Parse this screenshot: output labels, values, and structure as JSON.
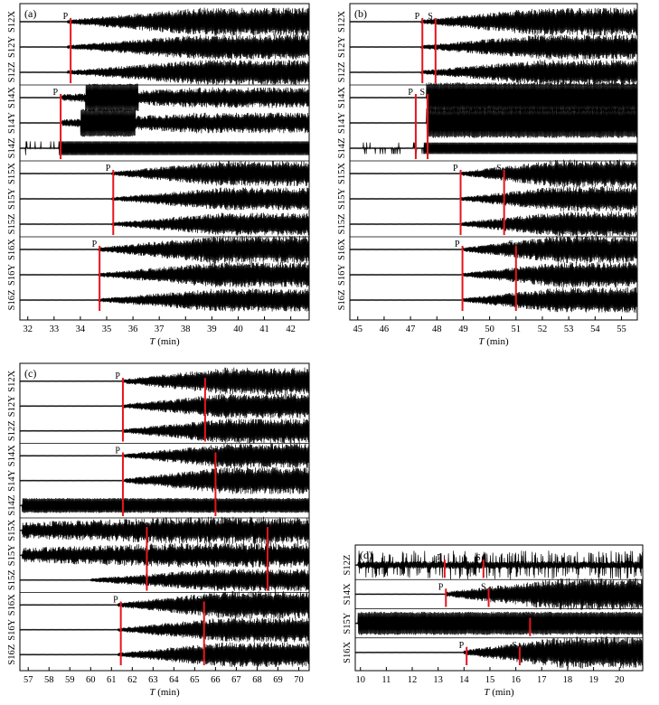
{
  "chart_data": [
    {
      "type": "line",
      "panel_label": "(a)",
      "xlabel_var": "T",
      "xlabel_unit": " (min)",
      "xlim": [
        31.7,
        42.7
      ],
      "x_ticks": [
        32,
        33,
        34,
        35,
        36,
        37,
        38,
        39,
        40,
        41,
        42
      ],
      "series": [
        {
          "name": "S12X",
          "group": "S12",
          "onset": 33.5,
          "peak": 0.55,
          "style": "grow"
        },
        {
          "name": "S12Y",
          "group": "S12",
          "onset": 33.5,
          "peak": 0.5,
          "style": "grow"
        },
        {
          "name": "S12Z",
          "group": "S12",
          "onset": 33.5,
          "peak": 0.5,
          "style": "grow"
        },
        {
          "name": "S14X",
          "group": "S14",
          "onset": 33.3,
          "peak": 0.55,
          "style": "burst",
          "burst_range": [
            34.2,
            36.2
          ]
        },
        {
          "name": "S14Y",
          "group": "S14",
          "onset": 33.3,
          "peak": 0.55,
          "style": "burst",
          "burst_range": [
            34.0,
            36.1
          ]
        },
        {
          "name": "S14Z",
          "group": "S14",
          "onset": 31.9,
          "peak": 0.3,
          "style": "spikes_then_block",
          "block_start": 33.2
        },
        {
          "name": "S15X",
          "group": "S15",
          "onset": 35.2,
          "peak": 0.5,
          "style": "grow"
        },
        {
          "name": "S15Y",
          "group": "S15",
          "onset": 35.2,
          "peak": 0.45,
          "style": "grow"
        },
        {
          "name": "S15Z",
          "group": "S15",
          "onset": 35.2,
          "peak": 0.45,
          "style": "grow"
        },
        {
          "name": "S16X",
          "group": "S16",
          "onset": 34.7,
          "peak": 0.55,
          "style": "grow"
        },
        {
          "name": "S16Y",
          "group": "S16",
          "onset": 34.7,
          "peak": 0.5,
          "style": "grow"
        },
        {
          "name": "S16Z",
          "group": "S16",
          "onset": 34.7,
          "peak": 0.45,
          "style": "grow"
        }
      ],
      "picks": [
        {
          "group": "S12",
          "phase": "P",
          "t": 33.63
        },
        {
          "group": "S14",
          "phase": "P",
          "t": 33.25
        },
        {
          "group": "S15",
          "phase": "P",
          "t": 35.25
        },
        {
          "group": "S16",
          "phase": "P",
          "t": 34.73
        }
      ]
    },
    {
      "type": "line",
      "panel_label": "(b)",
      "xlabel_var": "T",
      "xlabel_unit": " (min)",
      "xlim": [
        44.7,
        55.6
      ],
      "x_ticks": [
        45,
        46,
        47,
        48,
        49,
        50,
        51,
        52,
        53,
        54,
        55
      ],
      "series": [
        {
          "name": "S12X",
          "group": "S12",
          "onset": 47.4,
          "peak": 0.55,
          "style": "grow"
        },
        {
          "name": "S12Y",
          "group": "S12",
          "onset": 47.4,
          "peak": 0.5,
          "style": "grow"
        },
        {
          "name": "S12Z",
          "group": "S12",
          "onset": 47.4,
          "peak": 0.5,
          "style": "grow"
        },
        {
          "name": "S14X",
          "group": "S14",
          "onset": 47.6,
          "peak": 0.6,
          "style": "block"
        },
        {
          "name": "S14Y",
          "group": "S14",
          "onset": 47.6,
          "peak": 0.6,
          "style": "block"
        },
        {
          "name": "S14Z",
          "group": "S14",
          "onset": 44.9,
          "peak": 0.25,
          "style": "spikes_then_block",
          "block_start": 47.5
        },
        {
          "name": "S15X",
          "group": "S15",
          "onset": 48.9,
          "peak": 0.55,
          "style": "grow"
        },
        {
          "name": "S15Y",
          "group": "S15",
          "onset": 48.9,
          "peak": 0.5,
          "style": "grow"
        },
        {
          "name": "S15Z",
          "group": "S15",
          "onset": 48.9,
          "peak": 0.5,
          "style": "grow"
        },
        {
          "name": "S16X",
          "group": "S16",
          "onset": 49.0,
          "peak": 0.55,
          "style": "grow"
        },
        {
          "name": "S16Y",
          "group": "S16",
          "onset": 49.0,
          "peak": 0.5,
          "style": "grow"
        },
        {
          "name": "S16Z",
          "group": "S16",
          "onset": 49.0,
          "peak": 0.5,
          "style": "grow"
        }
      ],
      "picks": [
        {
          "group": "S12",
          "phase": "P",
          "t": 47.45
        },
        {
          "group": "S12",
          "phase": "S",
          "t": 47.95
        },
        {
          "group": "S14",
          "phase": "P",
          "t": 47.2
        },
        {
          "group": "S14",
          "phase": "S",
          "t": 47.65
        },
        {
          "group": "S15",
          "phase": "P",
          "t": 48.9
        },
        {
          "group": "S15",
          "phase": "S",
          "t": 50.55
        },
        {
          "group": "S16",
          "phase": "P",
          "t": 48.97
        },
        {
          "group": "S16",
          "phase": "S",
          "t": 51.0
        }
      ]
    },
    {
      "type": "line",
      "panel_label": "(c)",
      "xlabel_var": "T",
      "xlabel_unit": " (min)",
      "xlim": [
        56.6,
        70.5
      ],
      "x_ticks": [
        57,
        58,
        59,
        60,
        61,
        62,
        63,
        64,
        65,
        66,
        67,
        68,
        69,
        70
      ],
      "series": [
        {
          "name": "S12X",
          "group": "S12",
          "onset": 61.5,
          "peak": 0.55,
          "style": "grow"
        },
        {
          "name": "S12Y",
          "group": "S12",
          "onset": 61.5,
          "peak": 0.5,
          "style": "grow"
        },
        {
          "name": "S12Z",
          "group": "S12",
          "onset": 61.5,
          "peak": 0.5,
          "style": "grow"
        },
        {
          "name": "S14X",
          "group": "S14",
          "onset": 61.6,
          "peak": 0.5,
          "style": "grow"
        },
        {
          "name": "S14Y",
          "group": "S14",
          "onset": 61.6,
          "peak": 0.55,
          "style": "grow"
        },
        {
          "name": "S14Z",
          "group": "S14",
          "onset": 56.7,
          "peak": 0.3,
          "style": "block"
        },
        {
          "name": "S15X",
          "group": "S15",
          "onset": 56.7,
          "peak": 0.55,
          "style": "noisy"
        },
        {
          "name": "S15Y",
          "group": "S15",
          "onset": 56.7,
          "peak": 0.5,
          "style": "noisy"
        },
        {
          "name": "S15Z",
          "group": "S15",
          "onset": 60.0,
          "peak": 0.45,
          "style": "grow"
        },
        {
          "name": "S16X",
          "group": "S16",
          "onset": 61.3,
          "peak": 0.55,
          "style": "grow"
        },
        {
          "name": "S16Y",
          "group": "S16",
          "onset": 61.3,
          "peak": 0.5,
          "style": "grow"
        },
        {
          "name": "S16Z",
          "group": "S16",
          "onset": 61.3,
          "peak": 0.5,
          "style": "grow"
        }
      ],
      "picks": [
        {
          "group": "S12",
          "phase": "P",
          "t": 61.55
        },
        {
          "group": "S12",
          "phase": "S",
          "t": 65.5
        },
        {
          "group": "S14",
          "phase": "P",
          "t": 61.55
        },
        {
          "group": "S14",
          "phase": "S",
          "t": 66.0
        },
        {
          "group": "S15",
          "phase": "P",
          "t": 62.7
        },
        {
          "group": "S15",
          "phase": "S",
          "t": 68.5
        },
        {
          "group": "S16",
          "phase": "P",
          "t": 61.45
        },
        {
          "group": "S16",
          "phase": "S",
          "t": 65.45
        }
      ]
    },
    {
      "type": "line",
      "panel_label": "(d)",
      "xlabel_var": "T",
      "xlabel_unit": " (min)",
      "xlim": [
        9.8,
        20.9
      ],
      "x_ticks": [
        10,
        11,
        12,
        13,
        14,
        15,
        16,
        17,
        18,
        19,
        20
      ],
      "series": [
        {
          "name": "S12Z",
          "group": "S12",
          "onset": 9.9,
          "peak": 0.55,
          "style": "spiky"
        },
        {
          "name": "S14X",
          "group": "S14",
          "onset": 13.3,
          "peak": 0.55,
          "style": "grow"
        },
        {
          "name": "S15Y",
          "group": "S15",
          "onset": 9.9,
          "peak": 0.4,
          "style": "block"
        },
        {
          "name": "S16X",
          "group": "S16",
          "onset": 14.0,
          "peak": 0.55,
          "style": "grow"
        }
      ],
      "picks": [
        {
          "group": "S12",
          "phase": "P",
          "t": 13.25
        },
        {
          "group": "S12",
          "phase": "S",
          "t": 14.75
        },
        {
          "group": "S14",
          "phase": "P",
          "t": 13.3
        },
        {
          "group": "S14",
          "phase": "S",
          "t": 14.95
        },
        {
          "group": "S15",
          "phase": "S",
          "t": 16.55
        },
        {
          "group": "S16",
          "phase": "P",
          "t": 14.1
        },
        {
          "group": "S16",
          "phase": "S",
          "t": 16.15
        }
      ]
    }
  ],
  "colors": {
    "trace": "#000000",
    "pick_line": "#e8141c",
    "frame": "#000000"
  }
}
